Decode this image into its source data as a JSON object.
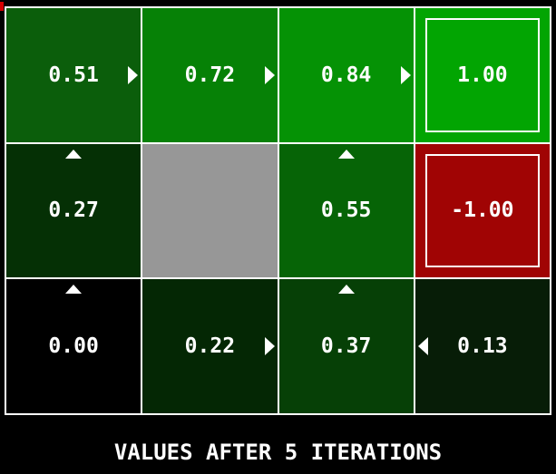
{
  "caption": "VALUES AFTER 5 ITERATIONS",
  "colors": {
    "background": "#000000",
    "grid_line": "#ffffff",
    "value_text": "#ffffff",
    "wall": "#979797",
    "positive_terminal": "#02a502",
    "negative_terminal": "#a00404",
    "artifact_red": "#d40000"
  },
  "grid": {
    "rows": 3,
    "cols": 4,
    "cells": [
      {
        "row": 0,
        "col": 0,
        "value": "0.51",
        "color": "#0b5e0b",
        "arrow": "right",
        "type": "state"
      },
      {
        "row": 0,
        "col": 1,
        "value": "0.72",
        "color": "#068106",
        "arrow": "right",
        "type": "state"
      },
      {
        "row": 0,
        "col": 2,
        "value": "0.84",
        "color": "#059205",
        "arrow": "right",
        "type": "state"
      },
      {
        "row": 0,
        "col": 3,
        "value": "1.00",
        "color": "#02a502",
        "arrow": null,
        "type": "terminal"
      },
      {
        "row": 1,
        "col": 0,
        "value": "0.27",
        "color": "#053005",
        "arrow": "up",
        "type": "state"
      },
      {
        "row": 1,
        "col": 1,
        "value": "",
        "color": "#979797",
        "arrow": null,
        "type": "wall"
      },
      {
        "row": 1,
        "col": 2,
        "value": "0.55",
        "color": "#066406",
        "arrow": "up",
        "type": "state"
      },
      {
        "row": 1,
        "col": 3,
        "value": "-1.00",
        "color": "#a00404",
        "arrow": null,
        "type": "terminal"
      },
      {
        "row": 2,
        "col": 0,
        "value": "0.00",
        "color": "#000000",
        "arrow": "up",
        "type": "state"
      },
      {
        "row": 2,
        "col": 1,
        "value": "0.22",
        "color": "#042704",
        "arrow": "right",
        "type": "state"
      },
      {
        "row": 2,
        "col": 2,
        "value": "0.37",
        "color": "#064006",
        "arrow": "up",
        "type": "state"
      },
      {
        "row": 2,
        "col": 3,
        "value": "0.13",
        "color": "#071d07",
        "arrow": "left",
        "type": "state"
      }
    ]
  }
}
